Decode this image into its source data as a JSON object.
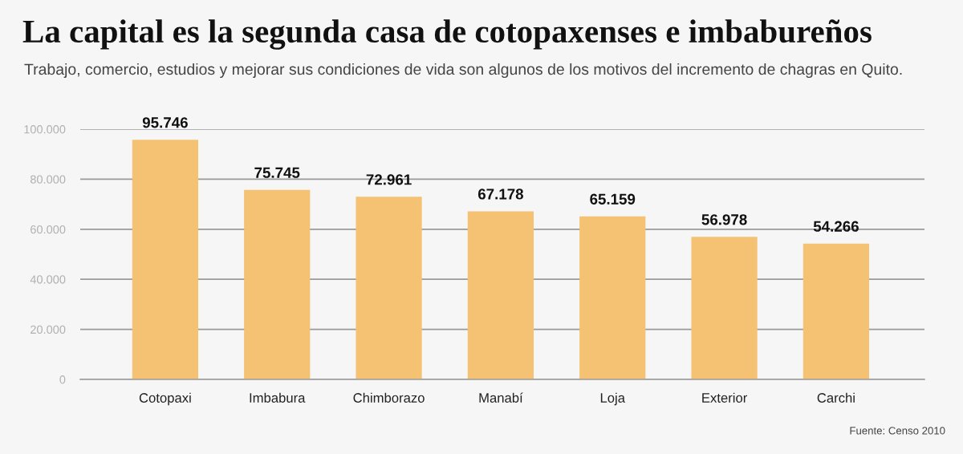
{
  "chart_data": {
    "type": "bar",
    "title": "La capital es la segunda casa de cotopaxenses e imbabureños",
    "subtitle": "Trabajo, comercio, estudios y mejorar sus condiciones de vida son algunos de los motivos del incremento de chagras en Quito.",
    "categories": [
      "Cotopaxi",
      "Imbabura",
      "Chimborazo",
      "Manabí",
      "Loja",
      "Exterior",
      "Carchi"
    ],
    "values": [
      95746,
      75745,
      72961,
      67178,
      65159,
      56978,
      54266
    ],
    "value_labels": [
      "95.746",
      "75.745",
      "72.961",
      "67.178",
      "65.159",
      "56.978",
      "54.266"
    ],
    "color": "#f4c272",
    "ylim": [
      0,
      100000
    ],
    "yticks": [
      0,
      {
        "value": 20000,
        "label": "20.000"
      },
      {
        "value": 40000,
        "label": "40.000"
      },
      {
        "value": 60000,
        "label": "60.000"
      },
      {
        "value": 80000,
        "label": "80.000"
      },
      {
        "value": 100000,
        "label": "100.000"
      }
    ],
    "grid": "y",
    "annotations": [
      "Fuente: Censo 2010"
    ]
  }
}
